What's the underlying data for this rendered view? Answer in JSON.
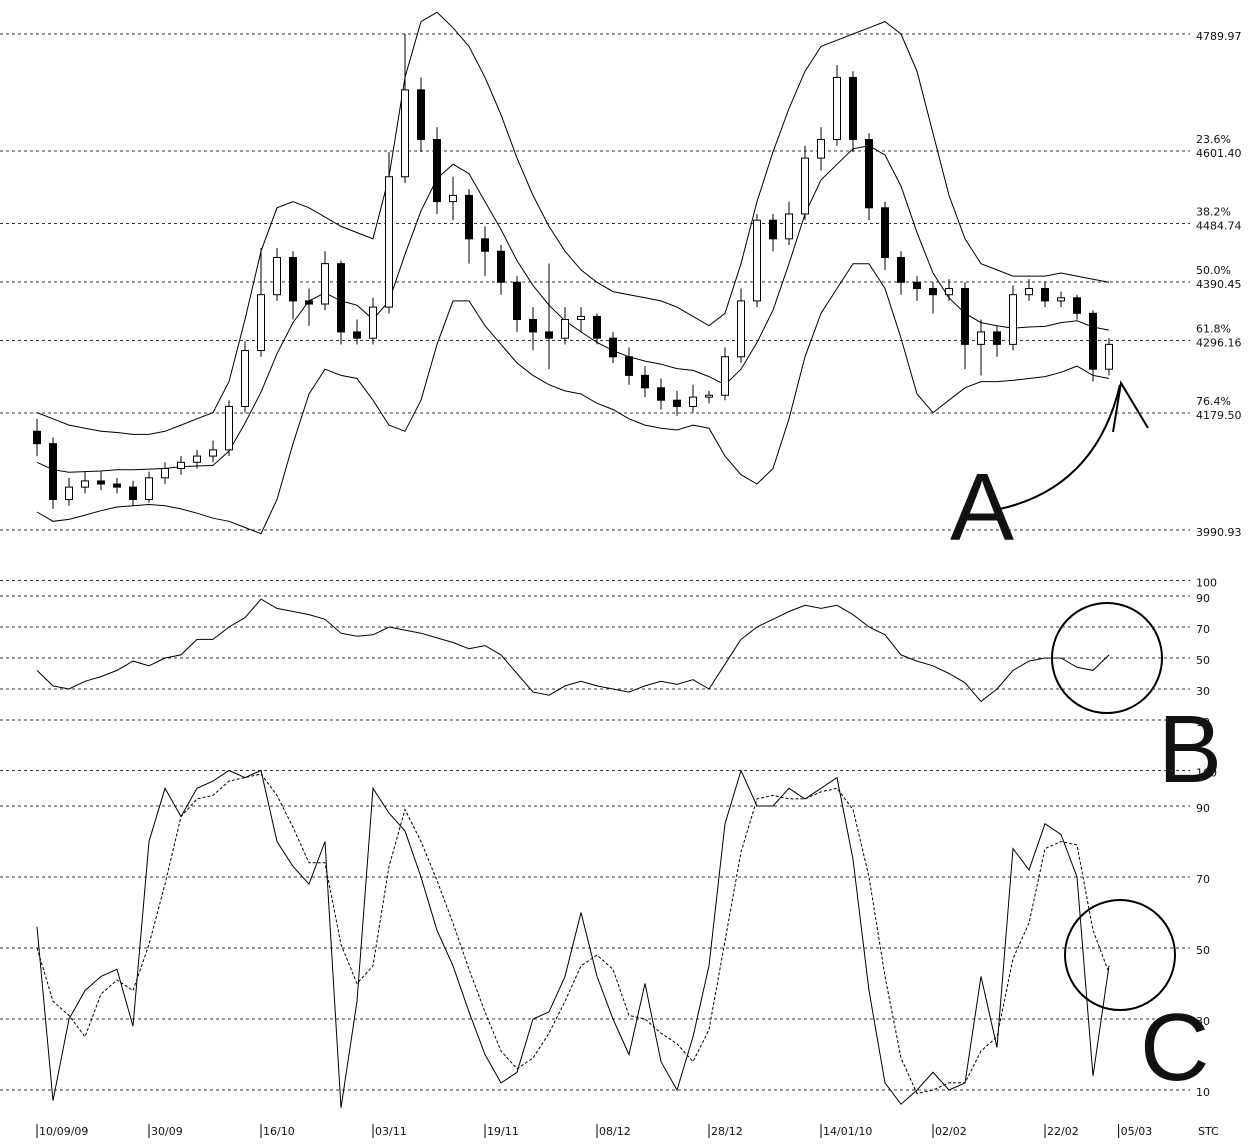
{
  "chart_data": [
    {
      "type": "candlestick",
      "up_color": "#ffffff",
      "down_color": "#000000",
      "band_color": "#000000",
      "ohlc": [
        [
          4150,
          4170,
          4110,
          4130
        ],
        [
          4130,
          4140,
          4025,
          4040
        ],
        [
          4040,
          4075,
          4030,
          4060
        ],
        [
          4060,
          4085,
          4050,
          4070
        ],
        [
          4070,
          4085,
          4055,
          4065
        ],
        [
          4065,
          4075,
          4050,
          4060
        ],
        [
          4060,
          4070,
          4030,
          4040
        ],
        [
          4040,
          4085,
          4035,
          4075
        ],
        [
          4075,
          4100,
          4065,
          4090
        ],
        [
          4090,
          4110,
          4080,
          4100
        ],
        [
          4100,
          4120,
          4090,
          4110
        ],
        [
          4110,
          4135,
          4100,
          4120
        ],
        [
          4120,
          4200,
          4110,
          4190
        ],
        [
          4190,
          4295,
          4180,
          4280
        ],
        [
          4280,
          4445,
          4270,
          4370
        ],
        [
          4370,
          4445,
          4360,
          4430
        ],
        [
          4430,
          4440,
          4330,
          4360
        ],
        [
          4360,
          4380,
          4320,
          4355
        ],
        [
          4355,
          4440,
          4345,
          4420
        ],
        [
          4420,
          4425,
          4290,
          4310
        ],
        [
          4310,
          4330,
          4290,
          4300
        ],
        [
          4300,
          4365,
          4290,
          4350
        ],
        [
          4350,
          4600,
          4340,
          4560
        ],
        [
          4560,
          4790,
          4550,
          4700
        ],
        [
          4700,
          4720,
          4600,
          4620
        ],
        [
          4620,
          4640,
          4500,
          4520
        ],
        [
          4520,
          4560,
          4490,
          4530
        ],
        [
          4530,
          4540,
          4420,
          4460
        ],
        [
          4460,
          4480,
          4400,
          4440
        ],
        [
          4440,
          4450,
          4370,
          4390
        ],
        [
          4390,
          4400,
          4310,
          4330
        ],
        [
          4330,
          4350,
          4280,
          4310
        ],
        [
          4310,
          4420,
          4250,
          4300
        ],
        [
          4300,
          4350,
          4290,
          4330
        ],
        [
          4330,
          4350,
          4310,
          4335
        ],
        [
          4335,
          4340,
          4290,
          4300
        ],
        [
          4300,
          4310,
          4260,
          4270
        ],
        [
          4270,
          4285,
          4225,
          4240
        ],
        [
          4240,
          4255,
          4205,
          4220
        ],
        [
          4220,
          4235,
          4185,
          4200
        ],
        [
          4200,
          4215,
          4175,
          4190
        ],
        [
          4190,
          4225,
          4180,
          4205
        ],
        [
          4205,
          4215,
          4195,
          4208
        ],
        [
          4208,
          4285,
          4200,
          4270
        ],
        [
          4270,
          4380,
          4260,
          4360
        ],
        [
          4360,
          4500,
          4350,
          4490
        ],
        [
          4490,
          4500,
          4440,
          4460
        ],
        [
          4460,
          4520,
          4450,
          4500
        ],
        [
          4500,
          4610,
          4490,
          4590
        ],
        [
          4590,
          4640,
          4570,
          4620
        ],
        [
          4620,
          4740,
          4610,
          4720
        ],
        [
          4720,
          4730,
          4600,
          4620
        ],
        [
          4620,
          4630,
          4490,
          4510
        ],
        [
          4510,
          4520,
          4410,
          4430
        ],
        [
          4430,
          4440,
          4370,
          4390
        ],
        [
          4390,
          4400,
          4360,
          4380
        ],
        [
          4380,
          4390,
          4340,
          4370
        ],
        [
          4370,
          4395,
          4360,
          4380
        ],
        [
          4380,
          4390,
          4250,
          4290
        ],
        [
          4290,
          4330,
          4240,
          4310
        ],
        [
          4310,
          4320,
          4270,
          4290
        ],
        [
          4290,
          4385,
          4280,
          4370
        ],
        [
          4370,
          4395,
          4360,
          4380
        ],
        [
          4380,
          4390,
          4350,
          4360
        ],
        [
          4360,
          4375,
          4350,
          4365
        ],
        [
          4365,
          4370,
          4330,
          4340
        ],
        [
          4340,
          4345,
          4230,
          4250
        ],
        [
          4250,
          4300,
          4240,
          4290
        ]
      ],
      "bands": {
        "upper": [
          4180,
          4170,
          4160,
          4155,
          4150,
          4148,
          4145,
          4145,
          4150,
          4160,
          4170,
          4180,
          4230,
          4330,
          4440,
          4510,
          4520,
          4510,
          4495,
          4480,
          4470,
          4460,
          4560,
          4720,
          4810,
          4825,
          4800,
          4770,
          4720,
          4660,
          4590,
          4530,
          4480,
          4440,
          4410,
          4390,
          4375,
          4370,
          4365,
          4360,
          4350,
          4335,
          4320,
          4340,
          4420,
          4520,
          4600,
          4670,
          4730,
          4770,
          4780,
          4790,
          4800,
          4810,
          4790,
          4730,
          4630,
          4530,
          4460,
          4420,
          4410,
          4400,
          4400,
          4400,
          4405,
          4400,
          4395,
          4390
        ],
        "middle": [
          4100,
          4088,
          4084,
          4085,
          4086,
          4088,
          4088,
          4089,
          4090,
          4093,
          4094,
          4095,
          4118,
          4163,
          4213,
          4275,
          4325,
          4360,
          4373,
          4360,
          4353,
          4330,
          4360,
          4435,
          4505,
          4557,
          4580,
          4565,
          4520,
          4475,
          4425,
          4385,
          4353,
          4328,
          4310,
          4293,
          4280,
          4270,
          4263,
          4258,
          4251,
          4248,
          4238,
          4225,
          4250,
          4293,
          4345,
          4420,
          4500,
          4555,
          4580,
          4605,
          4610,
          4595,
          4545,
          4470,
          4405,
          4365,
          4340,
          4325,
          4320,
          4316,
          4318,
          4319,
          4325,
          4328,
          4318,
          4313
        ],
        "lower": [
          4020,
          4005,
          4008,
          4015,
          4022,
          4028,
          4030,
          4032,
          4030,
          4025,
          4018,
          4010,
          4005,
          3995,
          3985,
          4040,
          4130,
          4210,
          4250,
          4240,
          4235,
          4200,
          4160,
          4150,
          4200,
          4290,
          4360,
          4360,
          4320,
          4290,
          4260,
          4240,
          4225,
          4215,
          4210,
          4195,
          4185,
          4170,
          4160,
          4155,
          4152,
          4160,
          4155,
          4110,
          4080,
          4065,
          4090,
          4170,
          4270,
          4340,
          4380,
          4420,
          4420,
          4380,
          4300,
          4210,
          4180,
          4200,
          4220,
          4230,
          4230,
          4232,
          4235,
          4238,
          4245,
          4255,
          4240,
          4235
        ]
      },
      "ylim": [
        3990.93,
        4789.97
      ],
      "yticks": [
        4789.97,
        {
          "value": 4601.4,
          "label": "4601.40",
          "ratio": "23.6%"
        },
        {
          "value": 4484.74,
          "label": "4484.74",
          "ratio": "38.2%"
        },
        {
          "value": 4390.45,
          "label": "4390.45",
          "ratio": "50.0%"
        },
        {
          "value": 4296.16,
          "label": "4296.16",
          "ratio": "61.8%"
        },
        {
          "value": 4179.5,
          "label": "4179.50",
          "ratio": "76.4%"
        },
        3990.93
      ],
      "grid": true,
      "annotation": "A"
    },
    {
      "type": "line",
      "series": [
        {
          "color": "#000000",
          "values": [
            42,
            32,
            30,
            35,
            38,
            42,
            48,
            45,
            50,
            52,
            62,
            62,
            70,
            76,
            88,
            82,
            80,
            78,
            75,
            66,
            64,
            65,
            70,
            68,
            66,
            63,
            60,
            56,
            58,
            52,
            40,
            28,
            26,
            32,
            35,
            32,
            30,
            28,
            32,
            35,
            33,
            36,
            30,
            46,
            62,
            70,
            75,
            80,
            84,
            82,
            84,
            78,
            70,
            65,
            52,
            48,
            45,
            40,
            34,
            22,
            30,
            42,
            48,
            50,
            50,
            44,
            42,
            52
          ]
        }
      ],
      "ylim": [
        0,
        100
      ],
      "yticks": [
        100,
        90,
        70,
        50,
        30,
        10
      ],
      "grid": true,
      "annotation": "B"
    },
    {
      "type": "line",
      "series": [
        {
          "color": "#000000",
          "values": [
            56,
            7,
            30,
            38,
            42,
            44,
            28,
            80,
            95,
            87,
            95,
            97,
            100,
            98,
            100,
            80,
            73,
            68,
            80,
            5,
            35,
            95,
            88,
            83,
            70,
            55,
            45,
            32,
            20,
            12,
            15,
            30,
            32,
            42,
            60,
            42,
            30,
            20,
            40,
            18,
            10,
            25,
            45,
            85,
            100,
            90,
            90,
            95,
            92,
            95,
            98,
            75,
            38,
            12,
            6,
            10,
            15,
            10,
            12,
            42,
            22,
            78,
            72,
            85,
            82,
            70,
            14,
            45
          ]
        },
        {
          "color": "#000000",
          "dashed": true,
          "values": [
            50,
            35,
            31,
            25,
            37,
            41,
            38,
            51,
            68,
            87,
            92,
            93,
            97,
            98,
            99,
            93,
            84,
            74,
            74,
            51,
            40,
            45,
            73,
            89,
            80,
            69,
            57,
            44,
            32,
            21,
            16,
            19,
            26,
            35,
            45,
            48,
            44,
            31,
            30,
            26,
            23,
            18,
            27,
            52,
            77,
            92,
            93,
            92,
            92,
            94,
            95,
            89,
            70,
            42,
            19,
            9,
            10,
            12,
            12,
            21,
            25,
            47,
            57,
            78,
            80,
            79,
            55,
            43
          ]
        }
      ],
      "ylim": [
        5,
        100
      ],
      "yticks": [
        100,
        90,
        70,
        50,
        30,
        10
      ],
      "grid": true,
      "xticks": [
        {
          "value": 0,
          "label": "10/09/09"
        },
        {
          "value": 7,
          "label": "30/09"
        },
        {
          "value": 14,
          "label": "16/10"
        },
        {
          "value": 21,
          "label": "03/11"
        },
        {
          "value": 28,
          "label": "19/11"
        },
        {
          "value": 35,
          "label": "08/12"
        },
        {
          "value": 42,
          "label": "28/12"
        },
        {
          "value": 49,
          "label": "14/01/10"
        },
        {
          "value": 56,
          "label": "02/02"
        },
        {
          "value": 63,
          "label": "22/02"
        },
        {
          "value": 67.6,
          "label": "05/03"
        }
      ],
      "label": "STC",
      "annotation": "C"
    }
  ]
}
